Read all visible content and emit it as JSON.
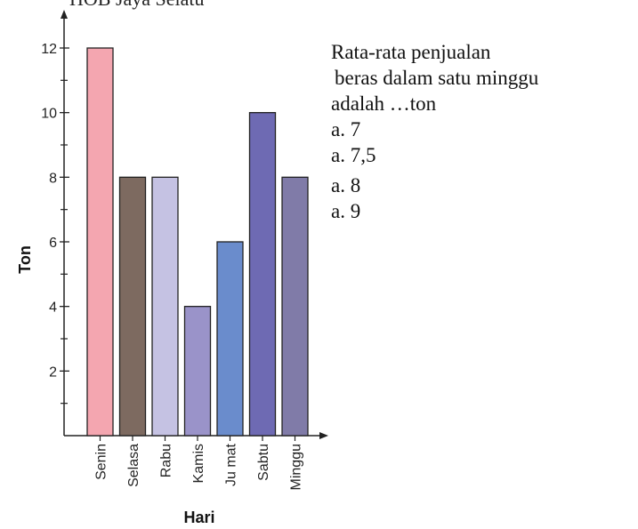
{
  "header_fragment": "HOB   Jaya Selatu",
  "question": {
    "stem_lines": [
      "Rata-rata penjualan",
      "beras dalam satu minggu",
      "adalah …ton"
    ],
    "options": [
      "a. 7",
      "a. 7,5",
      "a. 8",
      "a. 9"
    ]
  },
  "chart_data": {
    "type": "bar",
    "xlabel": "Hari",
    "ylabel": "Ton",
    "categories": [
      "Senin",
      "Selasa",
      "Rabu",
      "Kamis",
      "Jumat",
      "Sabtu",
      "Minggu"
    ],
    "category_labels": [
      "Senin",
      "Selasa",
      "Rabu",
      "Kamis",
      "Ju mat",
      "Sabtu",
      "Minggu"
    ],
    "values": [
      12,
      8,
      8,
      4,
      6,
      10,
      8
    ],
    "bar_colors": [
      "#f4a6b0",
      "#7d6a60",
      "#c5c2e3",
      "#9a93c9",
      "#6a8ccc",
      "#6e6ab3",
      "#807ba8"
    ],
    "ylim": [
      0,
      12
    ],
    "yticks": [
      2,
      4,
      6,
      8,
      10,
      12
    ],
    "ytick_labels": [
      "2",
      "4",
      "6",
      "8",
      "10",
      "12"
    ],
    "minor_ticks": true,
    "grid": false
  }
}
